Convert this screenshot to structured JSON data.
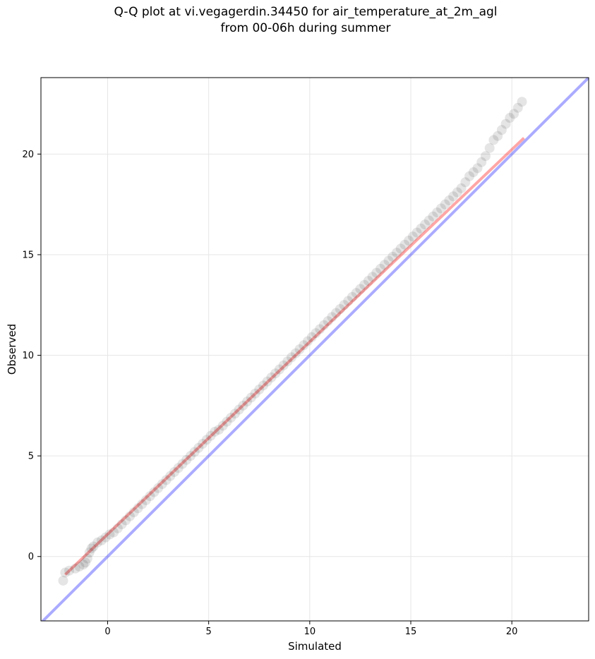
{
  "chart_data": {
    "type": "scatter",
    "title": "Q-Q plot at vi.vegagerdin.34450 for air_temperature_at_2m_agl",
    "subtitle": "from 00-06h during summer",
    "xlabel": "Simulated",
    "ylabel": "Observed",
    "xlim": [
      -3.3,
      23.8
    ],
    "ylim": [
      -3.2,
      23.8
    ],
    "x_ticks": [
      0,
      5,
      10,
      15,
      20
    ],
    "y_ticks": [
      0,
      5,
      10,
      15,
      20
    ],
    "grid": true,
    "colors": {
      "points": "#000000",
      "fit_line": "#ff0000",
      "identity_line": "#0000ff",
      "grid": "#e6e6e6"
    },
    "fit_line": {
      "x": [
        -2.1,
        20.6
      ],
      "y": [
        -0.9,
        20.8
      ]
    },
    "identity_line": {
      "x": [
        -3.3,
        23.8
      ],
      "y": [
        -3.3,
        23.8
      ]
    },
    "series": [
      {
        "x": [
          -2.2,
          -2.1,
          -1.9,
          -1.6,
          -1.4,
          -1.2,
          -1.1,
          -1.0,
          -0.9,
          -0.8,
          -0.7,
          -0.5,
          -0.3,
          -0.1,
          0.1,
          0.3,
          0.5,
          0.7,
          0.9,
          1.1,
          1.3,
          1.5,
          1.7,
          1.9,
          2.1,
          2.3,
          2.5,
          2.7,
          2.9,
          3.1,
          3.3,
          3.5,
          3.7,
          3.9,
          4.1,
          4.3,
          4.5,
          4.7,
          4.9,
          5.1,
          5.3,
          5.5,
          5.7,
          5.9,
          6.1,
          6.3,
          6.5,
          6.7,
          6.9,
          7.1,
          7.3,
          7.5,
          7.7,
          7.9,
          8.1,
          8.3,
          8.5,
          8.7,
          8.9,
          9.1,
          9.3,
          9.5,
          9.7,
          9.9,
          10.1,
          10.3,
          10.5,
          10.7,
          10.9,
          11.1,
          11.3,
          11.5,
          11.7,
          11.9,
          12.1,
          12.3,
          12.5,
          12.7,
          12.9,
          13.1,
          13.3,
          13.5,
          13.7,
          13.9,
          14.1,
          14.3,
          14.5,
          14.7,
          14.9,
          15.1,
          15.3,
          15.5,
          15.7,
          15.9,
          16.1,
          16.3,
          16.5,
          16.7,
          16.9,
          17.1,
          17.3,
          17.5,
          17.7,
          17.9,
          18.1,
          18.3,
          18.5,
          18.7,
          18.9,
          19.1,
          19.3,
          19.5,
          19.7,
          19.9,
          20.1,
          20.3,
          20.5
        ],
        "y": [
          -1.2,
          -0.8,
          -0.7,
          -0.6,
          -0.5,
          -0.4,
          -0.3,
          -0.1,
          0.2,
          0.4,
          0.5,
          0.7,
          0.8,
          0.95,
          1.1,
          1.2,
          1.4,
          1.6,
          1.8,
          2.0,
          2.2,
          2.4,
          2.6,
          2.8,
          3.0,
          3.2,
          3.4,
          3.6,
          3.8,
          4.0,
          4.2,
          4.4,
          4.6,
          4.8,
          5.0,
          5.2,
          5.4,
          5.6,
          5.8,
          6.0,
          6.2,
          6.3,
          6.5,
          6.7,
          6.9,
          7.1,
          7.3,
          7.5,
          7.7,
          7.9,
          8.1,
          8.3,
          8.5,
          8.7,
          8.9,
          9.1,
          9.3,
          9.5,
          9.7,
          9.9,
          10.1,
          10.3,
          10.5,
          10.7,
          10.9,
          11.1,
          11.3,
          11.5,
          11.7,
          11.9,
          12.1,
          12.3,
          12.5,
          12.7,
          12.9,
          13.1,
          13.3,
          13.5,
          13.7,
          13.9,
          14.1,
          14.3,
          14.5,
          14.7,
          14.9,
          15.1,
          15.3,
          15.5,
          15.7,
          15.9,
          16.1,
          16.3,
          16.5,
          16.7,
          16.9,
          17.1,
          17.3,
          17.5,
          17.7,
          17.9,
          18.1,
          18.3,
          18.6,
          18.9,
          19.1,
          19.3,
          19.6,
          19.9,
          20.3,
          20.7,
          20.9,
          21.2,
          21.5,
          21.8,
          22.0,
          22.3,
          22.6
        ]
      }
    ]
  }
}
